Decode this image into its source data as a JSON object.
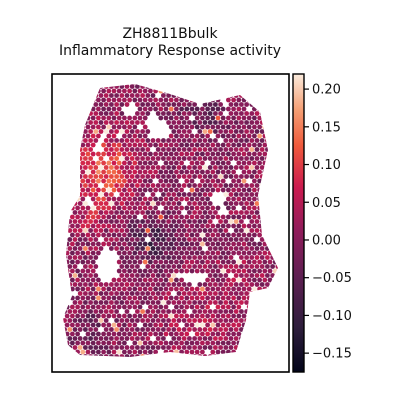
{
  "title_line1": "ZH8811Bbulk",
  "title_line2": "Inflammatory Response activity",
  "chart_data": {
    "type": "heatmap",
    "subtype": "spatial-hex-spots",
    "title": "ZH8811Bbulk Inflammatory Response activity",
    "xlabel": "",
    "ylabel": "",
    "color_range": [
      -0.175,
      0.22
    ],
    "colormap": "rocket",
    "colorbar_ticks": [
      -0.15,
      -0.1,
      -0.05,
      0.0,
      0.05,
      0.1,
      0.15,
      0.2
    ],
    "colorbar_tick_labels": [
      "−0.15",
      "−0.10",
      "−0.05",
      "0.00",
      "0.05",
      "0.10",
      "0.15",
      "0.20"
    ],
    "regions": [
      {
        "name": "upper-left high activity",
        "approx_value": 0.12
      },
      {
        "name": "left-middle elevated",
        "approx_value": 0.07
      },
      {
        "name": "bottom-right cluster elevated",
        "approx_value": 0.06
      },
      {
        "name": "background tissue",
        "approx_value": 0.0
      },
      {
        "name": "center dark pockets",
        "approx_value": -0.12
      }
    ],
    "grid": false,
    "legend": "colorbar-right"
  }
}
